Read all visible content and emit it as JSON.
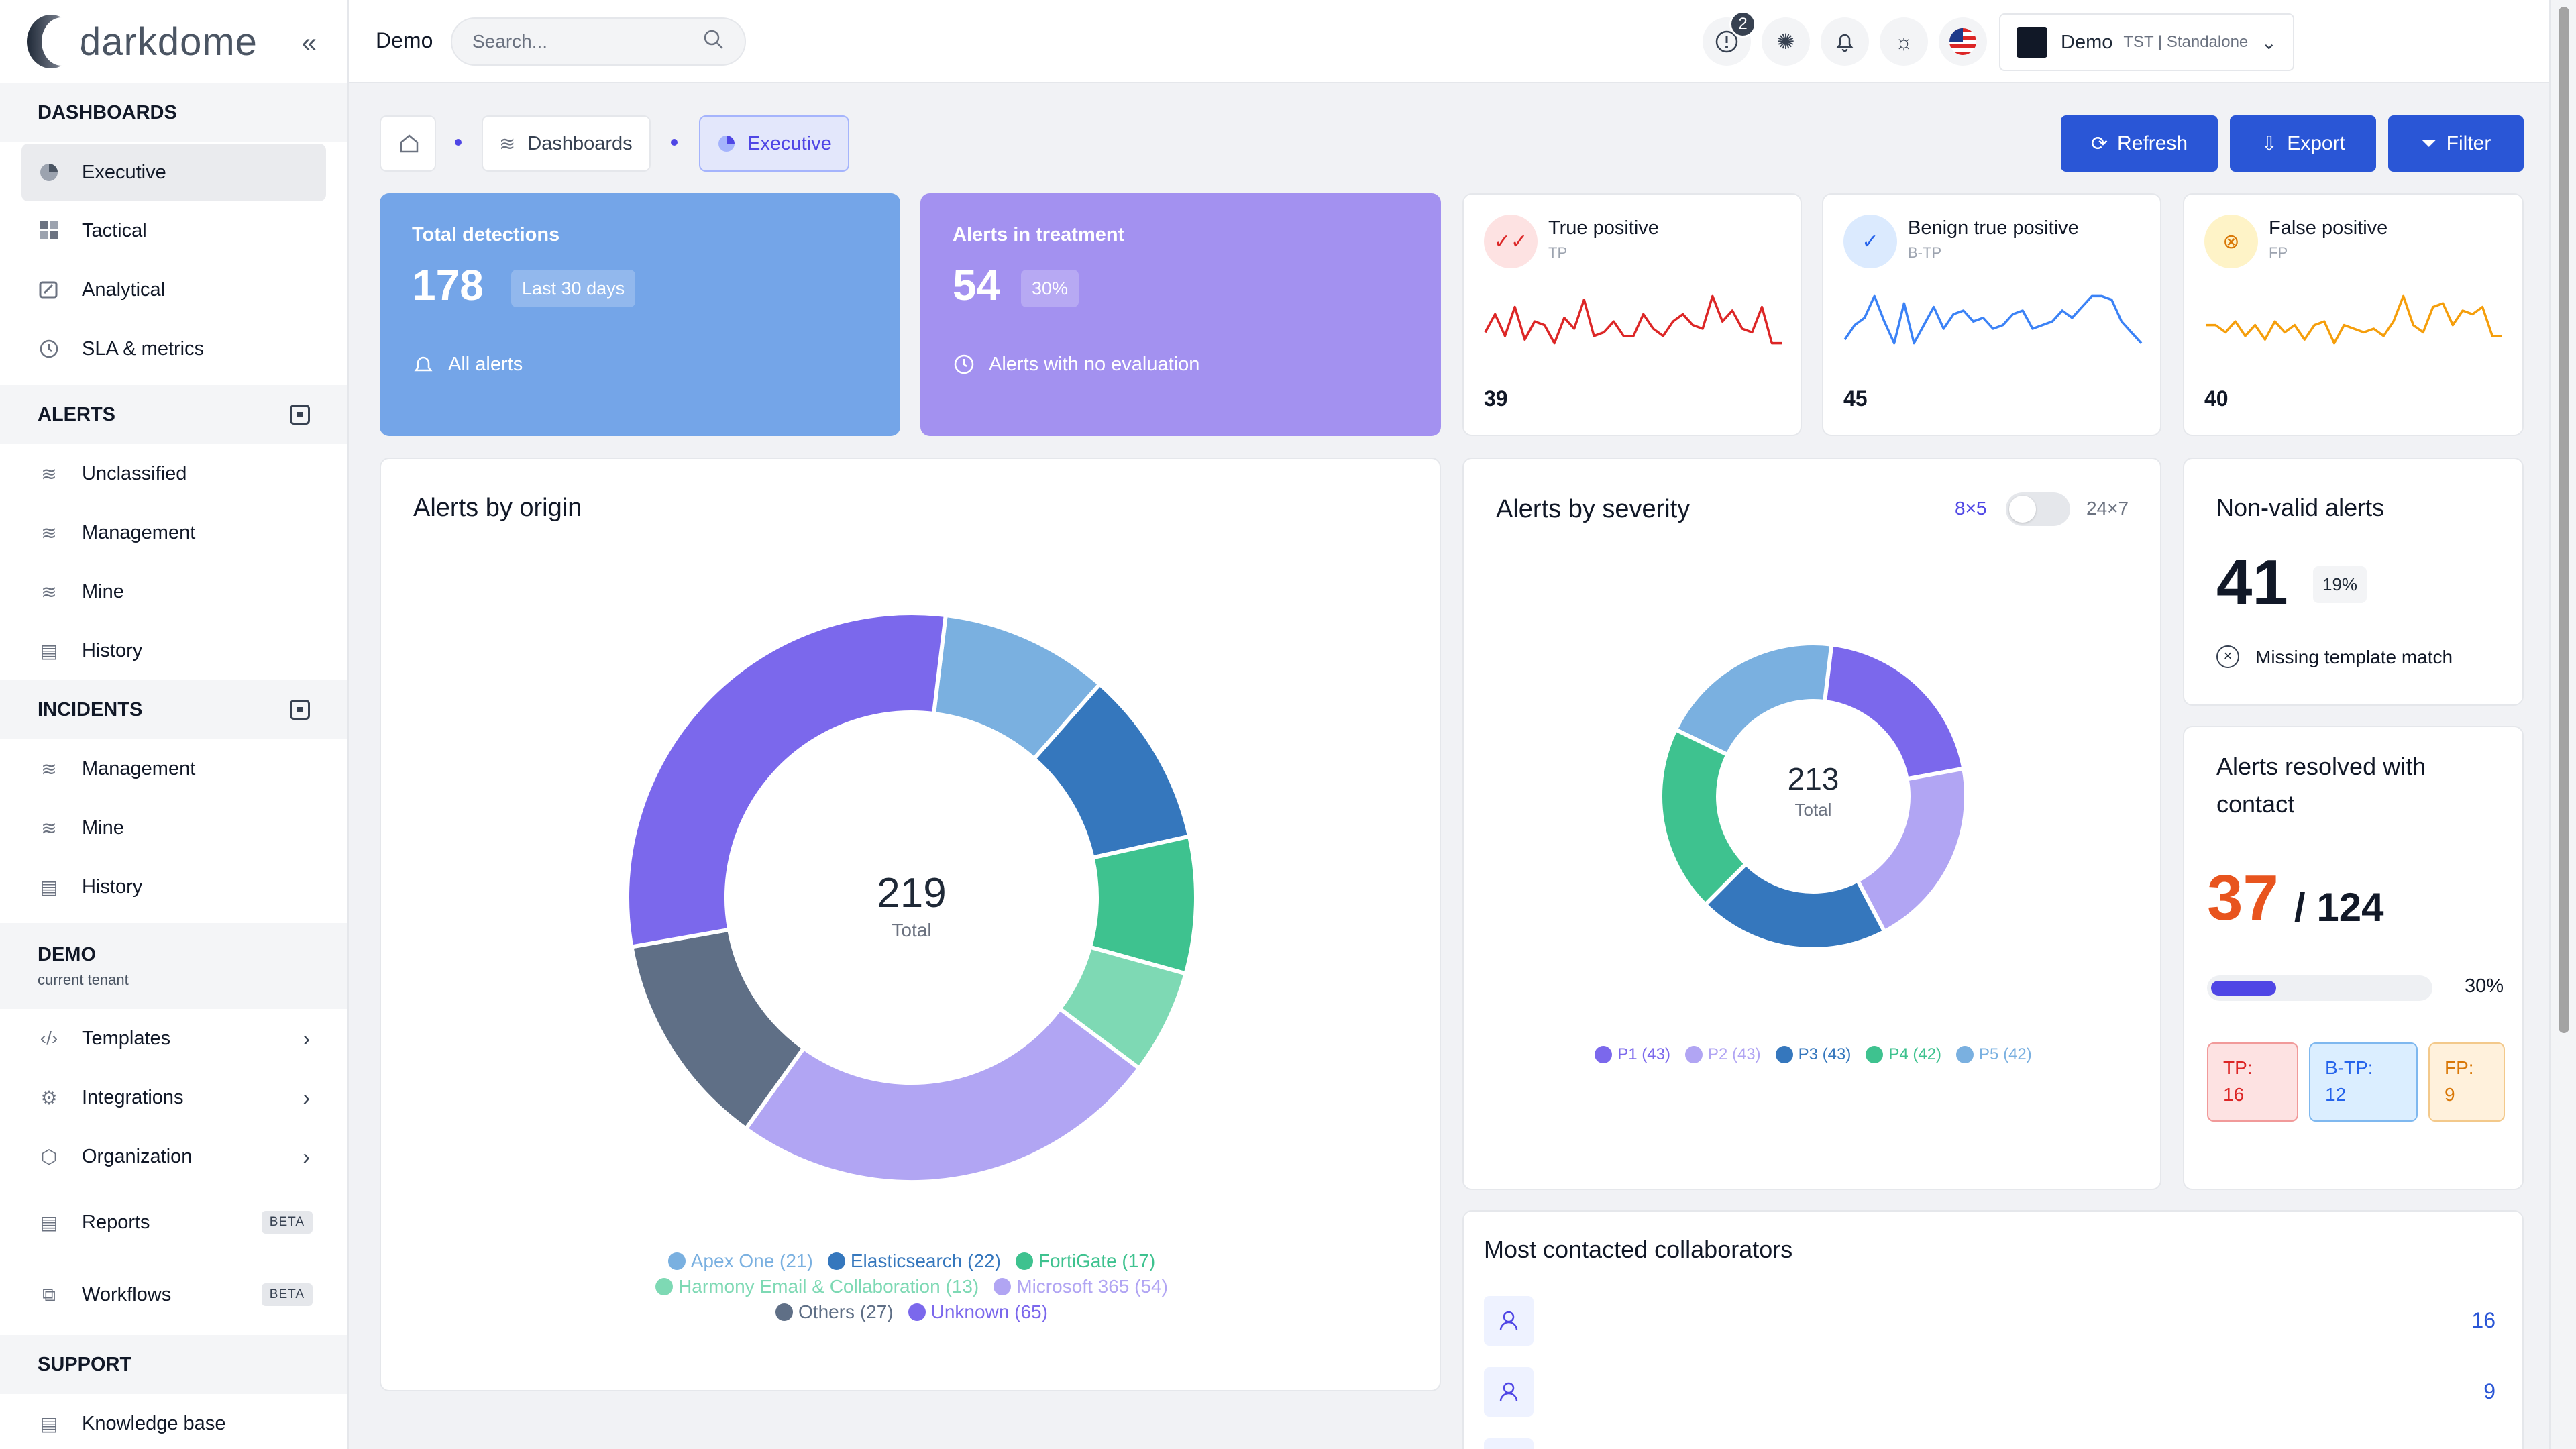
{
  "app": {
    "brand": "darkdome",
    "collapse_icon": "chevron-left-icon"
  },
  "sidebar": {
    "sections": {
      "dashboards": "DASHBOARDS",
      "alerts": "ALERTS",
      "incidents": "INCIDENTS",
      "tenant": "DEMO",
      "tenant_sub": "current tenant",
      "support": "SUPPORT"
    },
    "dashboards": [
      "Executive",
      "Tactical",
      "Analytical",
      "SLA & metrics"
    ],
    "alerts": [
      "Unclassified",
      "Management",
      "Mine",
      "History"
    ],
    "incidents": [
      "Management",
      "Mine",
      "History"
    ],
    "tenant_items": [
      "Templates",
      "Integrations",
      "Organization",
      "Reports",
      "Workflows"
    ],
    "beta_label": "BETA",
    "support": [
      "Knowledge base"
    ]
  },
  "topbar": {
    "tenant_label": "Demo",
    "search_placeholder": "Search...",
    "notification_count": "2",
    "tenant_name": "Demo",
    "tenant_meta": "TST | Standalone"
  },
  "breadcrumb": {
    "dashboards": "Dashboards",
    "executive": "Executive"
  },
  "actions": {
    "refresh": "Refresh",
    "export": "Export",
    "filter": "Filter"
  },
  "stats": {
    "total_detections": {
      "label": "Total detections",
      "value": "178",
      "pill": "Last 30 days",
      "foot": "All alerts"
    },
    "alerts_in_treatment": {
      "label": "Alerts in treatment",
      "value": "54",
      "pill": "30%",
      "foot": "Alerts with no evaluation"
    }
  },
  "mini_cards": [
    {
      "title": "True positive",
      "sub": "TP",
      "value": "39",
      "color": "#dc2626",
      "series": [
        0.45,
        0.7,
        0.4,
        0.8,
        0.35,
        0.6,
        0.55,
        0.3,
        0.65,
        0.5,
        0.9,
        0.4,
        0.45,
        0.6,
        0.4,
        0.4,
        0.7,
        0.5,
        0.4,
        0.6,
        0.7,
        0.55,
        0.5,
        0.95,
        0.6,
        0.75,
        0.5,
        0.45,
        0.8,
        0.3,
        0.3
      ]
    },
    {
      "title": "Benign true positive",
      "sub": "B-TP",
      "value": "45",
      "color": "#3b82f6",
      "series": [
        0.35,
        0.55,
        0.65,
        0.95,
        0.6,
        0.3,
        0.85,
        0.3,
        0.55,
        0.8,
        0.5,
        0.7,
        0.75,
        0.6,
        0.65,
        0.5,
        0.55,
        0.7,
        0.75,
        0.5,
        0.55,
        0.6,
        0.75,
        0.65,
        0.8,
        0.95,
        0.95,
        0.9,
        0.6,
        0.45,
        0.3
      ]
    },
    {
      "title": "False positive",
      "sub": "FP",
      "value": "40",
      "color": "#f59e0b",
      "series": [
        0.55,
        0.55,
        0.45,
        0.6,
        0.4,
        0.55,
        0.35,
        0.6,
        0.45,
        0.55,
        0.35,
        0.55,
        0.6,
        0.3,
        0.55,
        0.5,
        0.45,
        0.5,
        0.4,
        0.6,
        0.95,
        0.55,
        0.45,
        0.8,
        0.85,
        0.55,
        0.75,
        0.7,
        0.8,
        0.4,
        0.4
      ]
    }
  ],
  "origin": {
    "title": "Alerts by origin",
    "total": "219",
    "total_label": "Total",
    "legend": [
      "Apex One (21)",
      "Elasticsearch (22)",
      "FortiGate (17)",
      "Harmony Email & Collaboration (13)",
      "Microsoft 365 (54)",
      "Others (27)",
      "Unknown (65)"
    ]
  },
  "severity": {
    "title": "Alerts by severity",
    "toggle_left": "8×5",
    "toggle_right": "24×7",
    "total": "213",
    "total_label": "Total",
    "legend": [
      "P1 (43)",
      "P2 (43)",
      "P3 (43)",
      "P4 (42)",
      "P5 (42)"
    ]
  },
  "non_valid": {
    "title": "Non-valid alerts",
    "value": "41",
    "pct": "19%",
    "reason": "Missing template match"
  },
  "resolved_contact": {
    "title_line1": "Alerts resolved with",
    "title_line2": "contact",
    "value": "37",
    "total": "/ 124",
    "pct": "30%",
    "progress": 0.3,
    "tp_label": "TP:",
    "tp": "16",
    "btp_label": "B-TP:",
    "btp": "12",
    "fp_label": "FP:",
    "fp": "9"
  },
  "collaborators": {
    "title": "Most contacted collaborators",
    "counts": [
      "16",
      "9"
    ]
  },
  "chart_data": [
    {
      "type": "pie",
      "title": "Alerts by origin",
      "categories": [
        "Apex One",
        "Elasticsearch",
        "FortiGate",
        "Harmony Email & Collaboration",
        "Microsoft 365",
        "Others",
        "Unknown"
      ],
      "values": [
        21,
        22,
        17,
        13,
        54,
        27,
        65
      ],
      "colors": [
        "#7ab0e0",
        "#3577bd",
        "#3ec28f",
        "#7ed9b4",
        "#b1a5f3",
        "#5f6f86",
        "#7b68ec"
      ],
      "total": 219
    },
    {
      "type": "pie",
      "title": "Alerts by severity",
      "categories": [
        "P1",
        "P2",
        "P3",
        "P4",
        "P5"
      ],
      "values": [
        43,
        43,
        43,
        42,
        42
      ],
      "colors": [
        "#7b68ec",
        "#b1a5f3",
        "#3577bd",
        "#3ec28f",
        "#7ab0e0"
      ],
      "total": 213
    }
  ]
}
